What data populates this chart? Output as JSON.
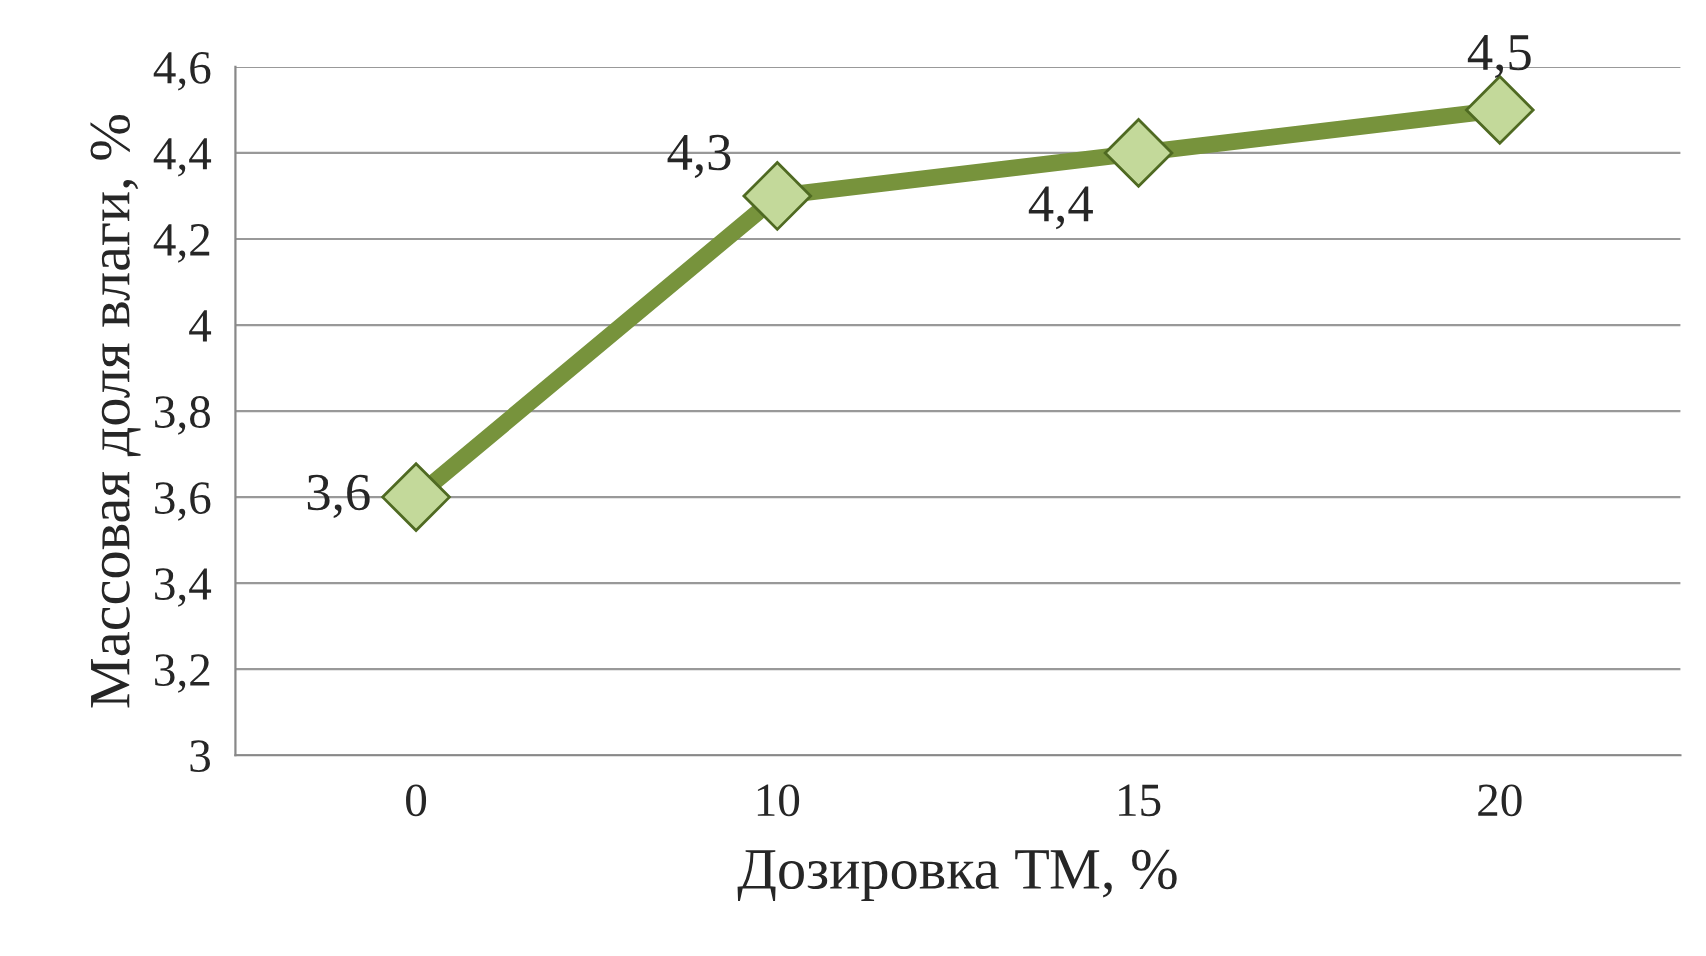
{
  "chart_data": {
    "type": "line",
    "xlabel": "Дозировка ТМ, %",
    "ylabel": "Массовая доля влаги, %",
    "categories": [
      "0",
      "10",
      "15",
      "20"
    ],
    "series": [
      {
        "color": "#77933c",
        "values": [
          3.6,
          4.3,
          4.4,
          4.5
        ],
        "value_labels": [
          "3,6",
          "4,3",
          "4,4",
          "4,5"
        ]
      }
    ],
    "ylim": [
      3,
      4.6
    ],
    "yticks": [
      3,
      {
        "value": 3.2,
        "label": "3,2"
      },
      {
        "value": 3.4,
        "label": "3,4"
      },
      {
        "value": 3.6,
        "label": "3,6"
      },
      {
        "value": 3.8,
        "label": "3,8"
      },
      4,
      {
        "value": 4.2,
        "label": "4,2"
      },
      {
        "value": 4.4,
        "label": "4,4"
      },
      {
        "value": 4.6,
        "label": "4,6"
      }
    ],
    "grid": "y",
    "marker": "diamond",
    "line_style": "solid",
    "legend": false
  }
}
